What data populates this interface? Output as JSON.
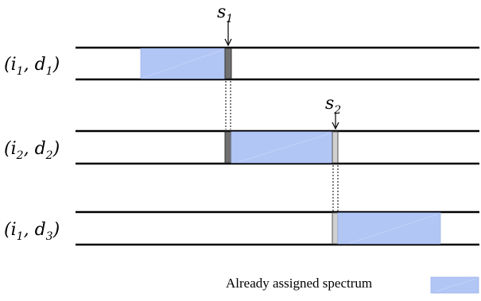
{
  "rows": [
    {
      "label_main": "(",
      "i": "i",
      "i_sub": "1",
      "d": "d",
      "d_sub": "1"
    },
    {
      "label_main": "(",
      "i": "i",
      "i_sub": "2",
      "d": "d",
      "d_sub": "2"
    },
    {
      "label_main": "(",
      "i": "i",
      "i_sub": "1",
      "d": "d",
      "d_sub": "3"
    }
  ],
  "markers": [
    {
      "symbol": "s",
      "sub": "1"
    },
    {
      "symbol": "s",
      "sub": "2"
    }
  ],
  "legend": {
    "label": "Already assigned spectrum"
  },
  "colors": {
    "assigned_fill": "#b2c6f6",
    "assigned_stroke": "#8fa8e6",
    "slot_dark": "#707070",
    "slot_light": "#d0d0d0",
    "line": "#000000"
  }
}
